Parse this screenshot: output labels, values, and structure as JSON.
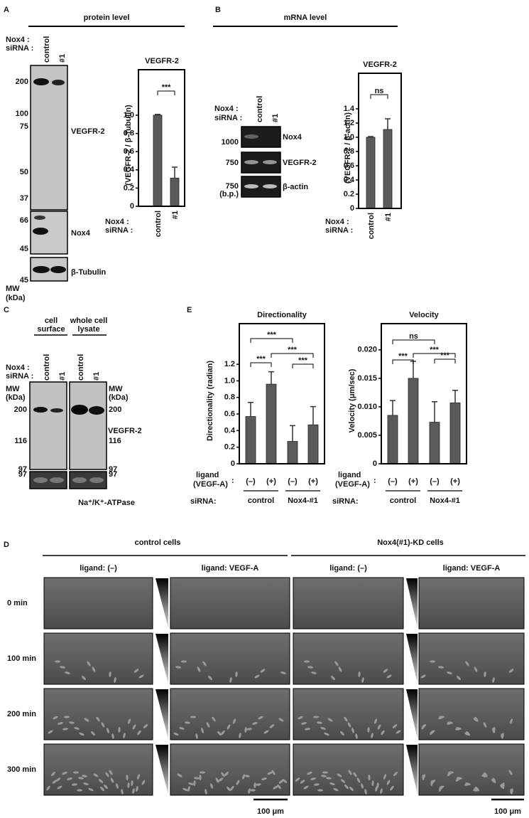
{
  "panel_a": {
    "letter": "A",
    "heading": "protein level",
    "row_labels": [
      "Nox4 :",
      "siRNA :"
    ],
    "lanes": [
      "control",
      "#1"
    ],
    "blots": [
      {
        "label": "VEGFR-2",
        "markers": [
          200,
          100,
          75,
          50,
          37
        ]
      },
      {
        "label": "Nox4",
        "markers": [
          66,
          45
        ]
      },
      {
        "label": "β-Tubulin",
        "markers": [
          45
        ]
      }
    ],
    "mw": [
      "MW",
      "(kDa)"
    ]
  },
  "panel_b": {
    "letter": "B",
    "heading": "mRNA level",
    "row_labels": [
      "Nox4 :",
      "siRNA :"
    ],
    "lanes": [
      "control",
      "#1"
    ],
    "gels": [
      {
        "label": "Nox4",
        "markers": [
          1000
        ]
      },
      {
        "label": "VEGFR-2",
        "markers": [
          750
        ]
      },
      {
        "label": "β-actin",
        "markers": [
          750,
          "(b.p.)"
        ]
      }
    ]
  },
  "panel_c": {
    "letter": "C",
    "groups": [
      [
        "cell",
        "surface"
      ],
      [
        "whole cell",
        "lysate"
      ]
    ],
    "row_labels": [
      "Nox4 :",
      "siRNA :"
    ],
    "lanes": [
      "control",
      "#1",
      "control",
      "#1"
    ],
    "mw_left": [
      "MW",
      "(kDa)"
    ],
    "mw_right": [
      "MW",
      "(kDa)"
    ],
    "markers_left": [
      200,
      116,
      97
    ],
    "markers_right": [
      200,
      116,
      97
    ],
    "blot_label": "VEGFR-2",
    "lower_marker_left": 97,
    "lower_marker_right": 97,
    "lower_label": "Na⁺/K⁺-ATPase"
  },
  "panel_d": {
    "letter": "D",
    "groups": [
      "control cells",
      "Nox4(#1)-KD cells"
    ],
    "columns": [
      "ligand: (–)",
      "ligand: VEGF-A",
      "ligand: (–)",
      "ligand: VEGF-A"
    ],
    "rows": [
      "0 min",
      "100 min",
      "200 min",
      "300 min"
    ],
    "scale_bars": [
      "100 μm",
      "100 μm"
    ]
  },
  "panel_e": {
    "letter": "E"
  },
  "chart_data": [
    {
      "type": "bar",
      "title": "VEGFR-2",
      "ylabel": "(VEGFR-2 / β-Tubulin)",
      "xlabel_lines": [
        "Nox4 :",
        "siRNA :"
      ],
      "categories": [
        "control",
        "#1"
      ],
      "values": [
        1.0,
        0.31
      ],
      "errors": [
        0.01,
        0.12
      ],
      "color": "#5a5a5a",
      "ylim": [
        0,
        1.5
      ],
      "yticks": [
        0,
        0.2,
        0.4,
        0.6,
        0.8,
        {
          "value": 1,
          "label": "1.0"
        }
      ],
      "significance": [
        "***"
      ]
    },
    {
      "type": "bar",
      "title": "VEGFR-2",
      "ylabel": "(VEGFR-2 / β-actin)",
      "xlabel_lines": [
        "Nox4 :",
        "siRNA :"
      ],
      "categories": [
        "control",
        "#1"
      ],
      "values": [
        1.0,
        1.11
      ],
      "errors": [
        0.01,
        0.15
      ],
      "color": "#5a5a5a",
      "ylim": [
        0,
        1.9
      ],
      "yticks": [
        0,
        0.2,
        0.4,
        0.6,
        0.8,
        {
          "value": 1,
          "label": "1.0"
        },
        1.2,
        1.4
      ],
      "significance": [
        "ns"
      ]
    },
    {
      "type": "bar",
      "title": "Directionality",
      "ylabel": "Directionality (radian)",
      "ligand_label": [
        "ligand",
        "(VEGF-A)",
        ":"
      ],
      "group_label": "siRNA:",
      "categories": [
        "(–)",
        "(+)",
        "(–)",
        "(+)"
      ],
      "groups": [
        "control",
        "Nox4-#1"
      ],
      "values": [
        0.57,
        0.96,
        0.27,
        0.47
      ],
      "errors": [
        0.17,
        0.15,
        0.19,
        0.22
      ],
      "color": "#5a5a5a",
      "ylim": [
        0,
        1.69
      ],
      "yticks": [
        0,
        0.2,
        0.4,
        0.6,
        0.8,
        {
          "value": 1,
          "label": "1.0"
        },
        1.2
      ],
      "significance": [
        "***",
        "***",
        "***",
        "***"
      ]
    },
    {
      "type": "bar",
      "title": "Velocity",
      "ylabel": "Velocity (μm/sec)",
      "ligand_label": [
        "ligand",
        "(VEGF-A)",
        ":"
      ],
      "group_label": "siRNA:",
      "categories": [
        "(–)",
        "(+)",
        "(–)",
        "(+)"
      ],
      "groups": [
        "control",
        "Nox4-#1"
      ],
      "values": [
        0.0085,
        0.015,
        0.0073,
        0.0107
      ],
      "errors": [
        0.0026,
        0.003,
        0.0036,
        0.0022
      ],
      "color": "#5a5a5a",
      "ylim": [
        0,
        0.0246
      ],
      "yticks": [
        0,
        0.005,
        {
          "value": 0.01,
          "label": "0.010"
        },
        0.015,
        {
          "value": 0.02,
          "label": "0.020"
        }
      ],
      "significance": [
        "ns",
        "***",
        "***",
        "***"
      ]
    }
  ]
}
